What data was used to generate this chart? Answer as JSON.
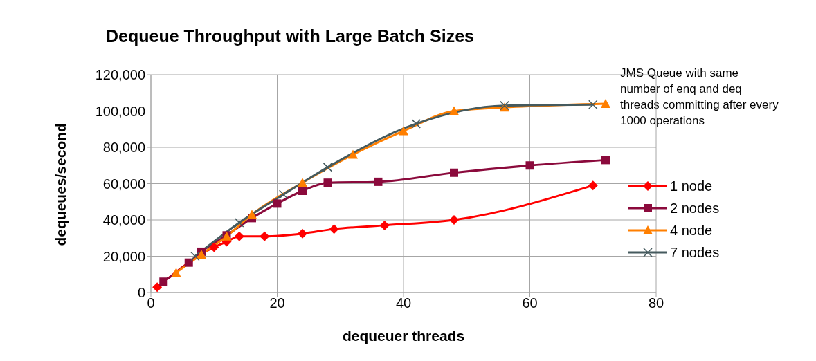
{
  "chart_data": {
    "type": "line",
    "title": "Dequeue Throughput with Large Batch Sizes",
    "xlabel": "dequeuer threads",
    "ylabel": "dequeues/second",
    "annotations": [
      "JMS Queue with same number of enq and deq threads committing after every 1000 operations"
    ],
    "xlim": [
      0,
      80
    ],
    "xticks": [
      0,
      20,
      40,
      60,
      80
    ],
    "ylim": [
      0,
      120000
    ],
    "yticks": [
      {
        "value": 0,
        "label": "0"
      },
      {
        "value": 20000,
        "label": "20,000"
      },
      {
        "value": 40000,
        "label": "40,000"
      },
      {
        "value": 60000,
        "label": "60,000"
      },
      {
        "value": 80000,
        "label": "80,000"
      },
      {
        "value": 100000,
        "label": "100,000"
      },
      {
        "value": 120000,
        "label": "120,000"
      }
    ],
    "grid": true,
    "legend": "right",
    "line_style": "solid",
    "series": [
      {
        "name": "1 node",
        "color": "#ff0000",
        "marker": "diamond",
        "x": [
          1,
          10,
          12,
          14,
          18,
          24,
          29,
          37,
          48,
          70
        ],
        "values": [
          3000,
          25000,
          28000,
          31000,
          31000,
          32500,
          35000,
          37000,
          40000,
          59000
        ]
      },
      {
        "name": "2 nodes",
        "color": "#8b0a3c",
        "marker": "square",
        "x": [
          2,
          6,
          8,
          12,
          16,
          20,
          24,
          28,
          36,
          48,
          60,
          72
        ],
        "values": [
          6000,
          16500,
          22500,
          31500,
          41000,
          49000,
          56000,
          60500,
          61000,
          66000,
          70000,
          73000
        ]
      },
      {
        "name": "4 node",
        "color": "#ff7f00",
        "marker": "triangle",
        "x": [
          4,
          8,
          12,
          16,
          24,
          32,
          40,
          48,
          56,
          72
        ],
        "values": [
          11000,
          21000,
          31000,
          43000,
          60500,
          76000,
          89000,
          100000,
          102000,
          104000
        ]
      },
      {
        "name": "7 nodes",
        "color": "#455a5e",
        "marker": "cross",
        "x": [
          7,
          14,
          21,
          28,
          42,
          56,
          70
        ],
        "values": [
          20000,
          38500,
          54000,
          69000,
          93000,
          103000,
          103500
        ]
      }
    ]
  }
}
